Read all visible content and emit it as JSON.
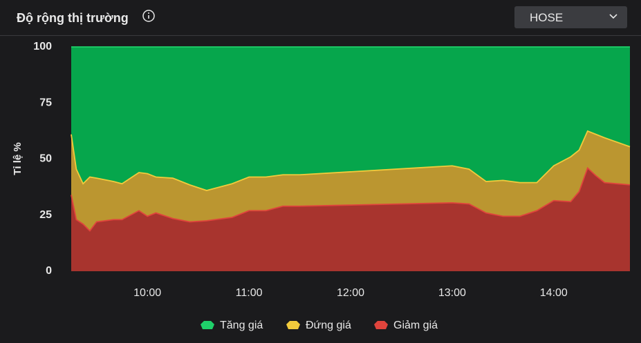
{
  "header": {
    "title": "Độ rộng thị trường",
    "dropdown": "HOSE"
  },
  "chart_data": {
    "type": "area",
    "stacked": true,
    "ylabel": "Tỉ lệ %",
    "x": [
      "09:15",
      "09:18",
      "09:22",
      "09:26",
      "09:30",
      "09:40",
      "09:45",
      "09:55",
      "10:00",
      "10:05",
      "10:15",
      "10:25",
      "10:35",
      "10:40",
      "10:50",
      "11:00",
      "11:10",
      "11:20",
      "11:30",
      "13:00",
      "13:10",
      "13:20",
      "13:30",
      "13:40",
      "13:50",
      "14:00",
      "14:10",
      "14:15",
      "14:20",
      "14:25",
      "14:30",
      "14:45"
    ],
    "xlim": [
      "09:15",
      "14:45"
    ],
    "xticks": [
      "10:00",
      "11:00",
      "12:00",
      "13:00",
      "14:00"
    ],
    "ylim": [
      0,
      100
    ],
    "yticks": [
      0,
      25,
      50,
      75,
      100
    ],
    "legend": "bottom",
    "series": [
      {
        "name": "Tăng giá",
        "color": "#06a64c",
        "line": "#1fd06a",
        "values": [
          39,
          54.5,
          61,
          58,
          58.5,
          60,
          61,
          56,
          56.5,
          58,
          58.5,
          61.5,
          64,
          63,
          61,
          58,
          58,
          57,
          57,
          53,
          54.5,
          60,
          59.5,
          60.5,
          60.5,
          53,
          49,
          46,
          37.5,
          39,
          40.5,
          44.5
        ]
      },
      {
        "name": "Đứng giá",
        "color": "#bb9630",
        "line": "#f2cb3c",
        "values": [
          27,
          22.5,
          18,
          24,
          19.5,
          17,
          16,
          17,
          19,
          16,
          18,
          16.5,
          13.5,
          14,
          15,
          15,
          15,
          14,
          14,
          16.5,
          15.5,
          14,
          16,
          15,
          12.5,
          15.5,
          20,
          18.5,
          16.5,
          18.5,
          20,
          17
        ]
      },
      {
        "name": "Giảm giá",
        "color": "#a8342e",
        "line": "#e0443c",
        "values": [
          34,
          23,
          21,
          18,
          22,
          23,
          23,
          27,
          24.5,
          26,
          23.5,
          22,
          22.5,
          23,
          24,
          27,
          27,
          29,
          29,
          30.5,
          30,
          26,
          24.5,
          24.5,
          27,
          31.5,
          31,
          35.5,
          46,
          42.5,
          39.5,
          38.5
        ]
      }
    ]
  }
}
